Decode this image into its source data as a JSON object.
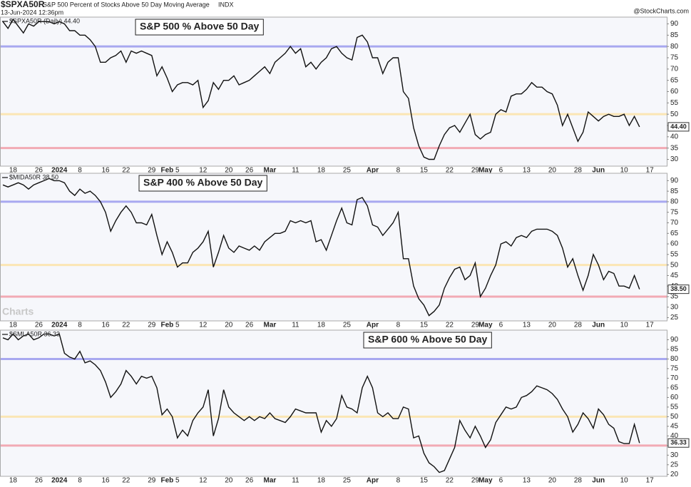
{
  "header": {
    "symbol": "$SPXA50R",
    "title": "S&P 500 Percent of Stocks Above 50 Day Moving Average",
    "exchange": "INDX",
    "date": "13-Jun-2024 12:36pm",
    "credit": "@StockCharts.com",
    "watermark": "Charts"
  },
  "chart_data": [
    {
      "type": "line",
      "title": "S&P 500 % Above 50 Day",
      "title_color": "#000000",
      "categories": [
        null,
        null,
        "18",
        null,
        null,
        null,
        null,
        "26",
        null,
        null,
        null,
        "2024",
        null,
        null,
        null,
        "8",
        null,
        null,
        null,
        null,
        "16",
        null,
        null,
        null,
        "22",
        null,
        null,
        null,
        null,
        "29",
        null,
        null,
        "Feb",
        null,
        "5",
        null,
        null,
        null,
        null,
        "12",
        null,
        null,
        null,
        null,
        "20",
        null,
        null,
        null,
        "26",
        null,
        null,
        null,
        "Mar",
        null,
        null,
        null,
        null,
        "11",
        null,
        null,
        null,
        null,
        "18",
        null,
        null,
        null,
        null,
        "25",
        null,
        null,
        null,
        null,
        "Apr",
        null,
        null,
        null,
        null,
        "8",
        null,
        null,
        null,
        null,
        "15",
        null,
        null,
        null,
        null,
        "22",
        null,
        null,
        null,
        null,
        "29",
        null,
        "May",
        null,
        null,
        "6",
        null,
        null,
        null,
        null,
        "13",
        null,
        null,
        null,
        null,
        "20",
        null,
        null,
        null,
        null,
        "28",
        null,
        null,
        null,
        "Jun",
        null,
        null,
        null,
        null,
        "10",
        null,
        null,
        null,
        null,
        "17"
      ],
      "series": [
        {
          "name": "$SPXA50R (Daily) 44.40",
          "color": "#111111",
          "last_label": "44.40",
          "values": [
            91,
            88,
            92,
            89,
            86,
            90,
            89,
            91,
            91,
            91,
            90,
            91,
            90,
            87,
            87,
            85,
            85,
            83,
            80,
            73,
            73,
            75,
            76,
            78,
            73,
            78,
            77,
            78,
            77,
            76,
            67,
            71,
            66,
            60,
            63,
            64,
            64,
            63,
            65,
            53,
            56,
            64,
            61,
            65,
            65,
            67,
            63,
            64,
            65,
            67,
            69,
            71,
            68,
            73,
            75,
            77,
            80,
            77,
            79,
            71,
            73,
            70,
            73,
            75,
            79,
            80,
            77,
            75,
            74,
            84,
            85,
            82,
            75,
            75,
            68,
            73,
            75,
            75,
            60,
            57,
            44,
            36,
            31,
            30,
            30,
            36,
            41,
            44,
            45,
            42,
            46,
            50,
            41,
            39,
            41,
            42,
            50,
            52,
            51,
            58,
            59,
            59,
            61,
            64,
            62,
            62,
            60,
            59,
            54,
            45,
            50,
            44,
            38,
            42,
            51,
            49,
            47,
            49,
            50,
            49,
            49,
            50,
            45,
            49,
            44.4,
            null,
            null
          ]
        }
      ],
      "ylim": [
        27,
        93
      ],
      "yticks": [
        30,
        35,
        40,
        45,
        50,
        55,
        60,
        65,
        70,
        75,
        80,
        85,
        90
      ],
      "hlines": [
        {
          "value": 80,
          "color": "#a8a8f0"
        },
        {
          "value": 50,
          "color": "#fbe6b4"
        },
        {
          "value": 35,
          "color": "#f2aab4"
        }
      ]
    },
    {
      "type": "line",
      "title": "S&P 400 % Above 50 Day",
      "title_color": "#1a1acc",
      "categories": [
        null,
        null,
        "18",
        null,
        null,
        null,
        null,
        "26",
        null,
        null,
        null,
        "2024",
        null,
        null,
        null,
        "8",
        null,
        null,
        null,
        null,
        "16",
        null,
        null,
        null,
        "22",
        null,
        null,
        null,
        null,
        "29",
        null,
        null,
        "Feb",
        null,
        "5",
        null,
        null,
        null,
        null,
        "12",
        null,
        null,
        null,
        null,
        "20",
        null,
        null,
        null,
        "26",
        null,
        null,
        null,
        "Mar",
        null,
        null,
        null,
        null,
        "11",
        null,
        null,
        null,
        null,
        "18",
        null,
        null,
        null,
        null,
        "25",
        null,
        null,
        null,
        null,
        "Apr",
        null,
        null,
        null,
        null,
        "8",
        null,
        null,
        null,
        null,
        "15",
        null,
        null,
        null,
        null,
        "22",
        null,
        null,
        null,
        null,
        "29",
        null,
        "May",
        null,
        null,
        "6",
        null,
        null,
        null,
        null,
        "13",
        null,
        null,
        null,
        null,
        "20",
        null,
        null,
        null,
        null,
        "28",
        null,
        null,
        null,
        "Jun",
        null,
        null,
        null,
        null,
        "10",
        null,
        null,
        null,
        null,
        "17"
      ],
      "series": [
        {
          "name": "$MIDA50R 38.50",
          "color": "#111111",
          "last_label": "38.50",
          "values": [
            88,
            87,
            88,
            89,
            88,
            86,
            88,
            89,
            90,
            91,
            90,
            90,
            89,
            85,
            83,
            86,
            84,
            85,
            83,
            80,
            75,
            66,
            71,
            75,
            78,
            75,
            70,
            70,
            69,
            74,
            64,
            55,
            61,
            56,
            49,
            51,
            51,
            56,
            58,
            61,
            66,
            49,
            56,
            64,
            58,
            56,
            59,
            58,
            57,
            59,
            57,
            61,
            63,
            65,
            65,
            66,
            71,
            70,
            71,
            70,
            71,
            61,
            62,
            57,
            64,
            71,
            77,
            70,
            69,
            81,
            82,
            78,
            69,
            68,
            64,
            67,
            70,
            75,
            53,
            53,
            40,
            34,
            31,
            26,
            28,
            31,
            39,
            44,
            48,
            49,
            43,
            45,
            51,
            35,
            39,
            45,
            50,
            60,
            61,
            59,
            63,
            64,
            63,
            66,
            67,
            67,
            67,
            66,
            64,
            58,
            49,
            53,
            45,
            38,
            45,
            55,
            50,
            43,
            47,
            46,
            40,
            40,
            39,
            45,
            38.5,
            null,
            null
          ]
        }
      ],
      "ylim": [
        23.5,
        93.5
      ],
      "yticks": [
        25,
        30,
        35,
        40,
        45,
        50,
        55,
        60,
        65,
        70,
        75,
        80,
        85,
        90
      ],
      "hlines": [
        {
          "value": 80,
          "color": "#a8a8f0"
        },
        {
          "value": 50,
          "color": "#fbe6b4"
        },
        {
          "value": 35,
          "color": "#f2aab4"
        }
      ]
    },
    {
      "type": "line",
      "title": "S&P 600 % Above 50 Day",
      "title_color": "#e01010",
      "categories": [
        null,
        null,
        "18",
        null,
        null,
        null,
        null,
        "26",
        null,
        null,
        null,
        "2024",
        null,
        null,
        null,
        "8",
        null,
        null,
        null,
        null,
        "16",
        null,
        null,
        null,
        "22",
        null,
        null,
        null,
        null,
        "29",
        null,
        null,
        "Feb",
        null,
        "5",
        null,
        null,
        null,
        null,
        "12",
        null,
        null,
        null,
        null,
        "20",
        null,
        null,
        null,
        "26",
        null,
        null,
        null,
        "Mar",
        null,
        null,
        null,
        null,
        "11",
        null,
        null,
        null,
        null,
        "18",
        null,
        null,
        null,
        null,
        "25",
        null,
        null,
        null,
        null,
        "Apr",
        null,
        null,
        null,
        null,
        "8",
        null,
        null,
        null,
        null,
        "15",
        null,
        null,
        null,
        null,
        "22",
        null,
        null,
        null,
        null,
        "29",
        null,
        "May",
        null,
        null,
        "6",
        null,
        null,
        null,
        null,
        "13",
        null,
        null,
        null,
        null,
        "20",
        null,
        null,
        null,
        null,
        "28",
        null,
        null,
        null,
        "Jun",
        null,
        null,
        null,
        null,
        "10",
        null,
        null,
        null,
        null,
        "17"
      ],
      "series": [
        {
          "name": "$SMLA50R 36.33",
          "color": "#111111",
          "last_label": "36.33",
          "values": [
            91,
            90,
            93,
            90,
            92,
            93,
            90,
            91,
            93,
            93,
            92,
            93,
            83,
            81,
            80,
            84,
            78,
            79,
            77,
            74,
            68,
            60,
            63,
            67,
            74,
            71,
            67,
            71,
            70,
            71,
            65,
            51,
            54,
            50,
            39,
            43,
            40,
            48,
            52,
            55,
            64,
            40,
            49,
            64,
            55,
            52,
            50,
            48,
            50,
            48,
            50,
            49,
            52,
            49,
            48,
            47,
            50,
            54,
            53,
            52,
            52,
            52,
            42,
            48,
            45,
            49,
            61,
            55,
            54,
            52,
            65,
            71,
            65,
            52,
            50,
            52,
            49,
            49,
            55,
            54,
            39,
            40,
            31,
            26,
            24,
            21,
            22,
            28,
            34,
            48,
            43,
            39,
            45,
            40,
            34,
            38,
            47,
            51,
            55,
            54,
            55,
            60,
            61,
            63,
            66,
            65,
            64,
            62,
            59,
            54,
            50,
            42,
            46,
            52,
            49,
            44,
            54,
            51,
            46,
            44,
            37,
            36,
            36,
            46,
            36.33,
            null,
            null
          ]
        }
      ],
      "ylim": [
        19,
        95
      ],
      "yticks": [
        20,
        25,
        30,
        35,
        40,
        45,
        50,
        55,
        60,
        65,
        70,
        75,
        80,
        85,
        90
      ],
      "hlines": [
        {
          "value": 80,
          "color": "#a8a8f0"
        },
        {
          "value": 50,
          "color": "#fbe6b4"
        },
        {
          "value": 35,
          "color": "#f2aab4"
        }
      ]
    }
  ]
}
